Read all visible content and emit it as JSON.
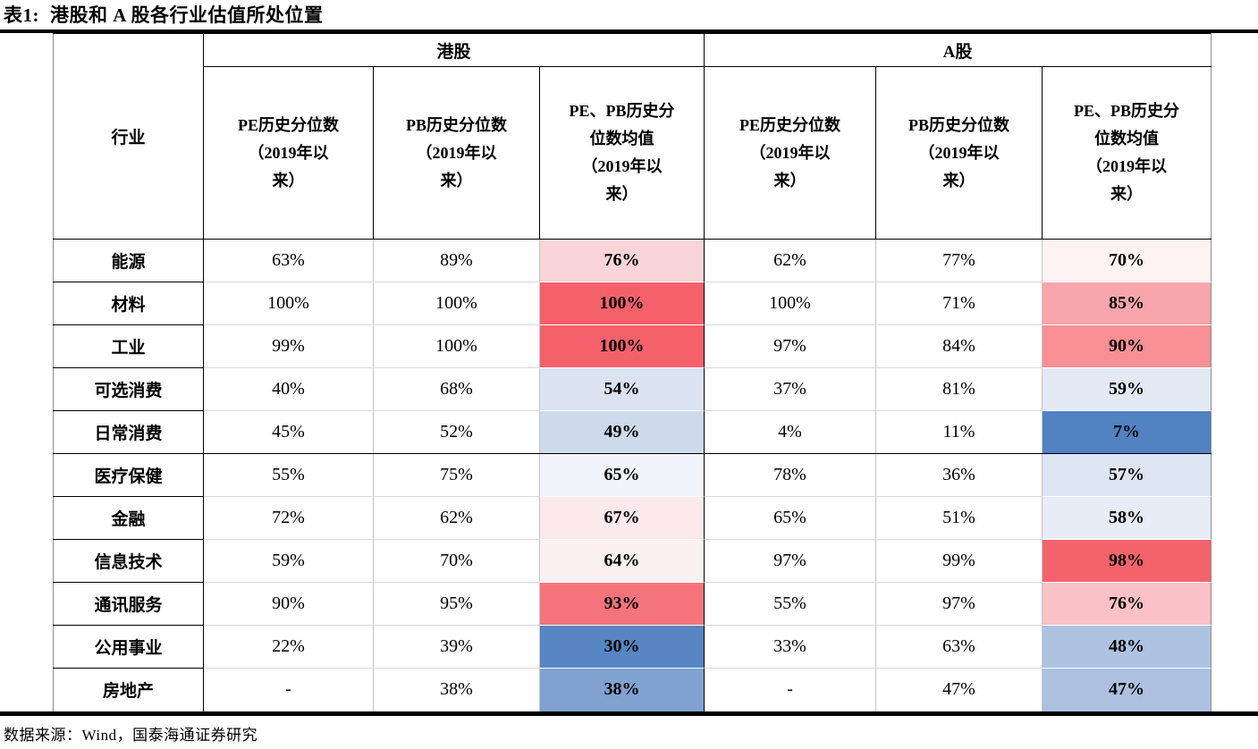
{
  "title": {
    "label": "表1:",
    "text": "港股和 A 股各行业估值所处位置"
  },
  "headers": {
    "industry": "行业",
    "group_hk": "港股",
    "group_a": "A股",
    "pe": "PE历史分位数\n（2019年以\n来）",
    "pb": "PB历史分位数\n（2019年以\n来）",
    "mean": "PE、PB历史分\n位数均值\n（2019年以\n来）"
  },
  "source": "数据来源：Wind，国泰海通证券研究",
  "colors": {
    "high_red": "#F4616B",
    "low_blue": "#5182C1",
    "grid_light": "#D9D9D9",
    "grid_black": "#000000"
  },
  "rows": [
    {
      "industry": "能源",
      "hk_pe": "63%",
      "hk_pb": "89%",
      "hk_mean": "76%",
      "hk_mean_bg": "#F9D5D9",
      "a_pe": "62%",
      "a_pb": "77%",
      "a_mean": "70%",
      "a_mean_bg": "#FDF3F4",
      "heavy_bottom": false
    },
    {
      "industry": "材料",
      "hk_pe": "100%",
      "hk_pb": "100%",
      "hk_mean": "100%",
      "hk_mean_bg": "#F4616B",
      "a_pe": "100%",
      "a_pb": "71%",
      "a_mean": "85%",
      "a_mean_bg": "#F8A6AB",
      "heavy_bottom": false
    },
    {
      "industry": "工业",
      "hk_pe": "99%",
      "hk_pb": "100%",
      "hk_mean": "100%",
      "hk_mean_bg": "#F4616B",
      "a_pe": "97%",
      "a_pb": "84%",
      "a_mean": "90%",
      "a_mean_bg": "#F78F95",
      "heavy_bottom": false
    },
    {
      "industry": "可选消费",
      "hk_pe": "40%",
      "hk_pb": "68%",
      "hk_mean": "54%",
      "hk_mean_bg": "#DBE2F0",
      "a_pe": "37%",
      "a_pb": "81%",
      "a_mean": "59%",
      "a_mean_bg": "#E2E9F4",
      "heavy_bottom": false
    },
    {
      "industry": "日常消费",
      "hk_pe": "45%",
      "hk_pb": "52%",
      "hk_mean": "49%",
      "hk_mean_bg": "#CEDAEB",
      "a_pe": "4%",
      "a_pb": "11%",
      "a_mean": "7%",
      "a_mean_bg": "#5182C1",
      "heavy_bottom": true
    },
    {
      "industry": "医疗保健",
      "hk_pe": "55%",
      "hk_pb": "75%",
      "hk_mean": "65%",
      "hk_mean_bg": "#F1F4FA",
      "a_pe": "78%",
      "a_pb": "36%",
      "a_mean": "57%",
      "a_mean_bg": "#DDE5F2",
      "heavy_bottom": false
    },
    {
      "industry": "金融",
      "hk_pe": "72%",
      "hk_pb": "62%",
      "hk_mean": "67%",
      "hk_mean_bg": "#FBE9EB",
      "a_pe": "65%",
      "a_pb": "51%",
      "a_mean": "58%",
      "a_mean_bg": "#E7ECF6",
      "heavy_bottom": false
    },
    {
      "industry": "信息技术",
      "hk_pe": "59%",
      "hk_pb": "70%",
      "hk_mean": "64%",
      "hk_mean_bg": "#FCF1F2",
      "a_pe": "97%",
      "a_pb": "99%",
      "a_mean": "98%",
      "a_mean_bg": "#F4636B",
      "heavy_bottom": false
    },
    {
      "industry": "通讯服务",
      "hk_pe": "90%",
      "hk_pb": "95%",
      "hk_mean": "93%",
      "hk_mean_bg": "#F5747C",
      "a_pe": "55%",
      "a_pb": "97%",
      "a_mean": "76%",
      "a_mean_bg": "#FAC2C6",
      "heavy_bottom": false
    },
    {
      "industry": "公用事业",
      "hk_pe": "22%",
      "hk_pb": "39%",
      "hk_mean": "30%",
      "hk_mean_bg": "#5786C3",
      "a_pe": "33%",
      "a_pb": "63%",
      "a_mean": "48%",
      "a_mean_bg": "#AEC3E1",
      "heavy_bottom": false
    },
    {
      "industry": "房地产",
      "hk_pe": "-",
      "hk_pb": "38%",
      "hk_mean": "38%",
      "hk_mean_bg": "#80A2D1",
      "a_pe": "-",
      "a_pb": "47%",
      "a_mean": "47%",
      "a_mean_bg": "#ACC1E0",
      "heavy_bottom": false
    }
  ]
}
